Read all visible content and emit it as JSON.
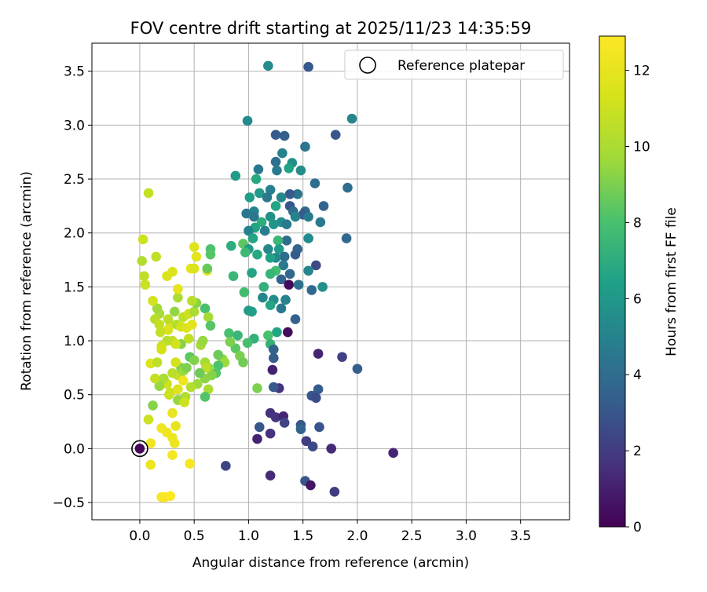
{
  "chart_data": {
    "type": "scatter",
    "title": "FOV centre drift starting at 2025/11/23 14:35:59",
    "xlabel": "Angular distance from reference (arcmin)",
    "ylabel": "Rotation from reference (arcmin)",
    "xlim": [
      -0.44,
      3.95
    ],
    "ylim": [
      -0.66,
      3.76
    ],
    "xticks": [
      "0.0",
      "0.5",
      "1.0",
      "1.5",
      "2.0",
      "2.5",
      "3.0",
      "3.5"
    ],
    "yticks": [
      "−0.5",
      "0.0",
      "0.5",
      "1.0",
      "1.5",
      "2.0",
      "2.5",
      "3.0",
      "3.5"
    ],
    "grid": true,
    "legend": {
      "placement": "top-right",
      "label": "Reference platepar"
    },
    "reference_point": {
      "x": 0.0,
      "y": 0.0
    },
    "colorbar": {
      "label": "Hours from first FF file",
      "range": [
        0,
        12.9
      ],
      "ticks": [
        "0",
        "2",
        "4",
        "6",
        "8",
        "10",
        "12"
      ],
      "colormap": "viridis"
    },
    "points": [
      [
        0.0,
        0.0,
        0.2
      ],
      [
        1.55,
        3.54,
        3.1
      ],
      [
        1.18,
        3.55,
        5.4
      ],
      [
        1.95,
        3.06,
        5.2
      ],
      [
        0.99,
        3.04,
        5.4
      ],
      [
        1.25,
        2.91,
        3.2
      ],
      [
        1.33,
        2.9,
        3.4
      ],
      [
        1.8,
        2.91,
        3.0
      ],
      [
        1.52,
        2.8,
        4.4
      ],
      [
        1.31,
        2.74,
        5.0
      ],
      [
        1.25,
        2.66,
        4.2
      ],
      [
        1.4,
        2.65,
        5.7
      ],
      [
        1.37,
        2.6,
        6.5
      ],
      [
        1.48,
        2.58,
        5.5
      ],
      [
        1.09,
        2.59,
        4.5
      ],
      [
        1.26,
        2.58,
        4.6
      ],
      [
        0.88,
        2.53,
        6.1
      ],
      [
        1.07,
        2.5,
        6.8
      ],
      [
        1.61,
        2.46,
        4.0
      ],
      [
        1.91,
        2.42,
        4.1
      ],
      [
        1.2,
        2.4,
        4.8
      ],
      [
        1.1,
        2.37,
        6.1
      ],
      [
        1.45,
        2.36,
        4.3
      ],
      [
        1.38,
        2.36,
        3.2
      ],
      [
        1.17,
        2.33,
        4.5
      ],
      [
        1.3,
        2.33,
        5.2
      ],
      [
        1.01,
        2.33,
        6.3
      ],
      [
        1.25,
        2.25,
        6.6
      ],
      [
        1.69,
        2.25,
        3.6
      ],
      [
        1.38,
        2.25,
        3.0
      ],
      [
        1.41,
        2.2,
        4.0
      ],
      [
        1.52,
        2.2,
        3.8
      ],
      [
        1.05,
        2.2,
        5.0
      ],
      [
        0.98,
        2.18,
        4.5
      ],
      [
        1.5,
        2.17,
        3.2
      ],
      [
        1.55,
        2.15,
        4.6
      ],
      [
        1.05,
        2.15,
        4.4
      ],
      [
        1.2,
        2.15,
        5.7
      ],
      [
        1.43,
        2.15,
        5.0
      ],
      [
        1.12,
        2.1,
        7.0
      ],
      [
        1.3,
        2.1,
        5.5
      ],
      [
        1.66,
        2.1,
        4.6
      ],
      [
        1.35,
        2.08,
        4.6
      ],
      [
        1.23,
        2.08,
        5.8
      ],
      [
        1.06,
        2.05,
        6.6
      ],
      [
        1.15,
        2.02,
        4.8
      ],
      [
        1.0,
        2.02,
        5.0
      ],
      [
        1.55,
        1.95,
        5.4
      ],
      [
        1.9,
        1.95,
        3.8
      ],
      [
        1.35,
        1.93,
        4.0
      ],
      [
        1.27,
        1.93,
        7.5
      ],
      [
        1.04,
        1.95,
        6.6
      ],
      [
        0.95,
        1.9,
        8.4
      ],
      [
        1.0,
        1.85,
        6.2
      ],
      [
        1.45,
        1.85,
        3.6
      ],
      [
        1.28,
        1.85,
        6.1
      ],
      [
        0.84,
        1.88,
        7.0
      ],
      [
        1.18,
        1.85,
        5.3
      ],
      [
        1.43,
        1.8,
        3.2
      ],
      [
        1.33,
        1.78,
        4.0
      ],
      [
        1.25,
        1.77,
        5.2
      ],
      [
        0.97,
        1.82,
        7.6
      ],
      [
        1.08,
        1.8,
        6.8
      ],
      [
        1.2,
        1.77,
        6.5
      ],
      [
        1.32,
        1.7,
        4.6
      ],
      [
        1.62,
        1.7,
        2.5
      ],
      [
        1.25,
        1.65,
        7.8
      ],
      [
        1.55,
        1.65,
        5.1
      ],
      [
        1.38,
        1.62,
        3.8
      ],
      [
        1.2,
        1.62,
        7.4
      ],
      [
        1.03,
        1.63,
        6.6
      ],
      [
        1.3,
        1.57,
        3.5
      ],
      [
        0.86,
        1.6,
        7.5
      ],
      [
        1.46,
        1.52,
        4.2
      ],
      [
        1.68,
        1.5,
        5.7
      ],
      [
        1.58,
        1.47,
        3.8
      ],
      [
        1.37,
        1.52,
        0.3
      ],
      [
        1.14,
        1.5,
        7.2
      ],
      [
        0.96,
        1.45,
        7.8
      ],
      [
        1.13,
        1.4,
        5.2
      ],
      [
        1.23,
        1.38,
        5.5
      ],
      [
        1.34,
        1.38,
        5.0
      ],
      [
        1.2,
        1.33,
        6.6
      ],
      [
        1.0,
        1.28,
        6.2
      ],
      [
        1.3,
        1.3,
        4.5
      ],
      [
        1.03,
        1.27,
        6.3
      ],
      [
        1.43,
        1.2,
        3.4
      ],
      [
        1.26,
        1.08,
        6.6
      ],
      [
        0.82,
        1.07,
        8.0
      ],
      [
        0.9,
        1.05,
        7.5
      ],
      [
        1.05,
        1.02,
        7.2
      ],
      [
        1.18,
        1.05,
        8.0
      ],
      [
        0.99,
        0.98,
        7.9
      ],
      [
        1.2,
        0.97,
        7.3
      ],
      [
        1.36,
        1.08,
        0.4
      ],
      [
        1.64,
        0.88,
        1.2
      ],
      [
        1.86,
        0.85,
        2.2
      ],
      [
        1.23,
        0.92,
        3.5
      ],
      [
        1.23,
        0.84,
        3.3
      ],
      [
        2.0,
        0.74,
        3.3
      ],
      [
        1.22,
        0.73,
        1.1
      ],
      [
        1.28,
        0.56,
        1.7
      ],
      [
        1.23,
        0.57,
        3.1
      ],
      [
        1.64,
        0.55,
        3.2
      ],
      [
        1.58,
        0.49,
        3.0
      ],
      [
        1.62,
        0.47,
        2.6
      ],
      [
        1.08,
        0.56,
        9.0
      ],
      [
        1.2,
        0.33,
        1.5
      ],
      [
        1.25,
        0.29,
        1.7
      ],
      [
        1.32,
        0.3,
        1.2
      ],
      [
        1.33,
        0.24,
        2.3
      ],
      [
        1.48,
        0.22,
        3.1
      ],
      [
        1.65,
        0.2,
        3.0
      ],
      [
        1.1,
        0.2,
        3.0
      ],
      [
        1.2,
        0.14,
        1.6
      ],
      [
        1.48,
        0.18,
        3.6
      ],
      [
        1.08,
        0.09,
        1.1
      ],
      [
        1.53,
        0.07,
        2.0
      ],
      [
        1.59,
        0.02,
        2.5
      ],
      [
        1.76,
        0.0,
        1.4
      ],
      [
        2.33,
        -0.04,
        1.2
      ],
      [
        0.79,
        -0.16,
        2.3
      ],
      [
        1.2,
        -0.25,
        1.4
      ],
      [
        1.52,
        -0.3,
        3.0
      ],
      [
        1.57,
        -0.34,
        0.7
      ],
      [
        1.79,
        -0.4,
        2.0
      ],
      [
        0.88,
        0.93,
        8.4
      ],
      [
        0.92,
        0.86,
        9.0
      ],
      [
        0.95,
        0.8,
        8.8
      ],
      [
        0.83,
        0.99,
        9.0
      ],
      [
        0.76,
        0.83,
        9.3
      ],
      [
        0.78,
        0.8,
        9.6
      ],
      [
        0.72,
        0.87,
        8.7
      ],
      [
        0.72,
        0.77,
        8.1
      ],
      [
        0.7,
        0.7,
        8.3
      ],
      [
        0.66,
        0.68,
        9.2
      ],
      [
        0.6,
        0.65,
        9.3
      ],
      [
        0.63,
        0.75,
        9.4
      ],
      [
        0.6,
        0.8,
        9.8
      ],
      [
        0.61,
        0.75,
        10.5
      ],
      [
        0.63,
        0.55,
        10.0
      ],
      [
        0.6,
        0.48,
        8.2
      ],
      [
        0.55,
        0.7,
        8.7
      ],
      [
        0.53,
        0.6,
        9.6
      ],
      [
        0.47,
        0.57,
        10.3
      ],
      [
        0.42,
        0.48,
        10.2
      ],
      [
        0.35,
        0.68,
        10.7
      ],
      [
        0.3,
        0.7,
        10.4
      ],
      [
        0.25,
        0.6,
        11.1
      ],
      [
        0.22,
        0.65,
        10.0
      ],
      [
        0.18,
        0.58,
        9.5
      ],
      [
        0.14,
        0.65,
        10.8
      ],
      [
        0.12,
        0.4,
        9.2
      ],
      [
        0.08,
        0.27,
        11.0
      ],
      [
        0.1,
        0.79,
        11.6
      ],
      [
        0.27,
        0.5,
        10.8
      ],
      [
        0.35,
        0.45,
        9.5
      ],
      [
        0.41,
        0.43,
        11.0
      ],
      [
        0.28,
        0.52,
        11.0
      ],
      [
        0.38,
        0.75,
        8.9
      ],
      [
        0.33,
        0.8,
        11.2
      ],
      [
        0.4,
        0.72,
        9.6
      ],
      [
        0.43,
        0.75,
        9.0
      ],
      [
        0.46,
        0.85,
        8.4
      ],
      [
        0.5,
        0.82,
        9.1
      ],
      [
        0.56,
        0.96,
        9.8
      ],
      [
        0.58,
        1.0,
        9.5
      ],
      [
        0.45,
        1.02,
        10.7
      ],
      [
        0.38,
        0.97,
        9.2
      ],
      [
        0.3,
        1.0,
        10.7
      ],
      [
        0.33,
        0.97,
        11.2
      ],
      [
        0.25,
        1.0,
        10.4
      ],
      [
        0.2,
        0.95,
        11.0
      ],
      [
        0.2,
        0.92,
        11.3
      ],
      [
        0.16,
        0.8,
        10.6
      ],
      [
        0.26,
        1.1,
        11.4
      ],
      [
        0.19,
        1.08,
        10.8
      ],
      [
        0.28,
        1.15,
        11.6
      ],
      [
        0.34,
        1.15,
        10.3
      ],
      [
        0.38,
        1.13,
        11.2
      ],
      [
        0.43,
        1.12,
        11.6
      ],
      [
        0.48,
        1.15,
        11.9
      ],
      [
        0.4,
        1.22,
        10.6
      ],
      [
        0.45,
        1.25,
        11.1
      ],
      [
        0.5,
        1.27,
        10.0
      ],
      [
        0.52,
        1.35,
        9.2
      ],
      [
        0.48,
        1.37,
        10.4
      ],
      [
        0.35,
        1.4,
        10.0
      ],
      [
        0.32,
        1.27,
        9.4
      ],
      [
        0.26,
        1.2,
        10.5
      ],
      [
        0.18,
        1.25,
        9.9
      ],
      [
        0.16,
        1.3,
        9.7
      ],
      [
        0.14,
        1.2,
        10.4
      ],
      [
        0.18,
        1.15,
        10.8
      ],
      [
        0.12,
        1.37,
        11.2
      ],
      [
        0.05,
        1.52,
        11.0
      ],
      [
        0.04,
        1.6,
        10.6
      ],
      [
        0.02,
        1.74,
        10.2
      ],
      [
        0.15,
        1.78,
        10.6
      ],
      [
        0.25,
        1.6,
        11.5
      ],
      [
        0.3,
        1.64,
        11.5
      ],
      [
        0.35,
        1.48,
        12.0
      ],
      [
        0.47,
        1.67,
        12.0
      ],
      [
        0.5,
        1.67,
        11.5
      ],
      [
        0.52,
        1.78,
        11.8
      ],
      [
        0.5,
        1.87,
        11.7
      ],
      [
        0.62,
        1.65,
        12.0
      ],
      [
        0.65,
        1.85,
        8.1
      ],
      [
        0.65,
        1.8,
        8.3
      ],
      [
        0.62,
        1.67,
        8.6
      ],
      [
        0.6,
        1.3,
        8.0
      ],
      [
        0.63,
        1.22,
        9.8
      ],
      [
        0.65,
        1.14,
        8.3
      ],
      [
        0.08,
        2.37,
        10.8
      ],
      [
        0.03,
        1.94,
        11.0
      ],
      [
        0.1,
        0.05,
        12.4
      ],
      [
        0.1,
        -0.15,
        12.3
      ],
      [
        0.2,
        -0.45,
        12.6
      ],
      [
        0.23,
        -0.45,
        12.7
      ],
      [
        0.28,
        -0.44,
        12.8
      ],
      [
        0.2,
        0.19,
        12.4
      ],
      [
        0.25,
        0.15,
        12.3
      ],
      [
        0.3,
        0.1,
        12.3
      ],
      [
        0.32,
        0.05,
        12.2
      ],
      [
        0.33,
        0.21,
        12.0
      ],
      [
        0.3,
        0.33,
        12.1
      ],
      [
        0.35,
        0.55,
        11.6
      ],
      [
        0.4,
        0.63,
        12.3
      ],
      [
        0.3,
        -0.06,
        12.5
      ],
      [
        0.46,
        -0.14,
        12.6
      ]
    ]
  }
}
